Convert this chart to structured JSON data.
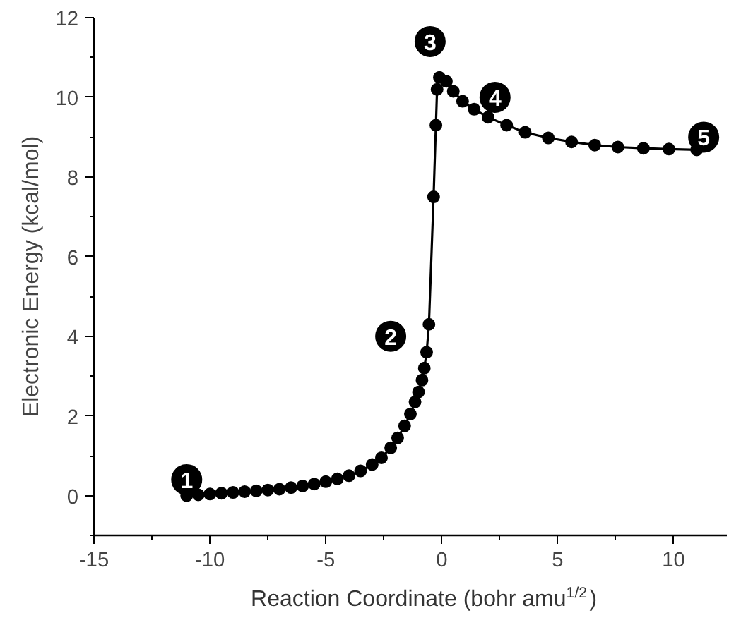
{
  "chart_data": {
    "type": "line",
    "xlabel": "Reaction Coordinate (bohr amu$^{1/2}$)",
    "ylabel": "Electronic Energy (kcal/mol)",
    "xlim": [
      -15,
      12.3
    ],
    "xticks": [
      -15,
      -10,
      -5,
      0,
      5,
      10
    ],
    "ylim": [
      -1,
      12
    ],
    "yticks": [
      0,
      2,
      4,
      6,
      8,
      10,
      12
    ],
    "grid": false,
    "marker": "circle",
    "line_style": "solid",
    "series": [
      {
        "color": "#000000",
        "x": [
          -11,
          -10.5,
          -10,
          -9.5,
          -9,
          -8.5,
          -8,
          -7.5,
          -7,
          -6.5,
          -6,
          -5.5,
          -5,
          -4.5,
          -4,
          -3.5,
          -3,
          -2.6,
          -2.2,
          -1.9,
          -1.6,
          -1.35,
          -1.15,
          -1.0,
          -0.85,
          -0.75,
          -0.65,
          -0.55,
          -0.35,
          -0.25,
          -0.2,
          -0.1,
          0.2,
          0.5,
          0.9,
          1.4,
          2,
          2.8,
          3.6,
          4.6,
          5.6,
          6.6,
          7.6,
          8.7,
          9.8,
          11
        ],
        "values": [
          0,
          0.02,
          0.04,
          0.06,
          0.08,
          0.1,
          0.12,
          0.14,
          0.16,
          0.2,
          0.24,
          0.29,
          0.35,
          0.42,
          0.5,
          0.62,
          0.78,
          0.95,
          1.2,
          1.45,
          1.75,
          2.05,
          2.35,
          2.6,
          2.9,
          3.2,
          3.6,
          4.3,
          7.5,
          9.3,
          10.2,
          10.5,
          10.4,
          10.15,
          9.9,
          9.7,
          9.5,
          9.3,
          9.12,
          8.98,
          8.88,
          8.8,
          8.75,
          8.72,
          8.7,
          8.68
        ]
      }
    ],
    "annotations": [
      {
        "text": "1",
        "x": -11,
        "y": 0.4
      },
      {
        "text": "2",
        "x": -2.2,
        "y": 4.0
      },
      {
        "text": "3",
        "x": -0.5,
        "y": 11.4
      },
      {
        "text": "4",
        "x": 2.3,
        "y": 10.0
      },
      {
        "text": "5",
        "x": 11.3,
        "y": 9.0
      }
    ]
  }
}
